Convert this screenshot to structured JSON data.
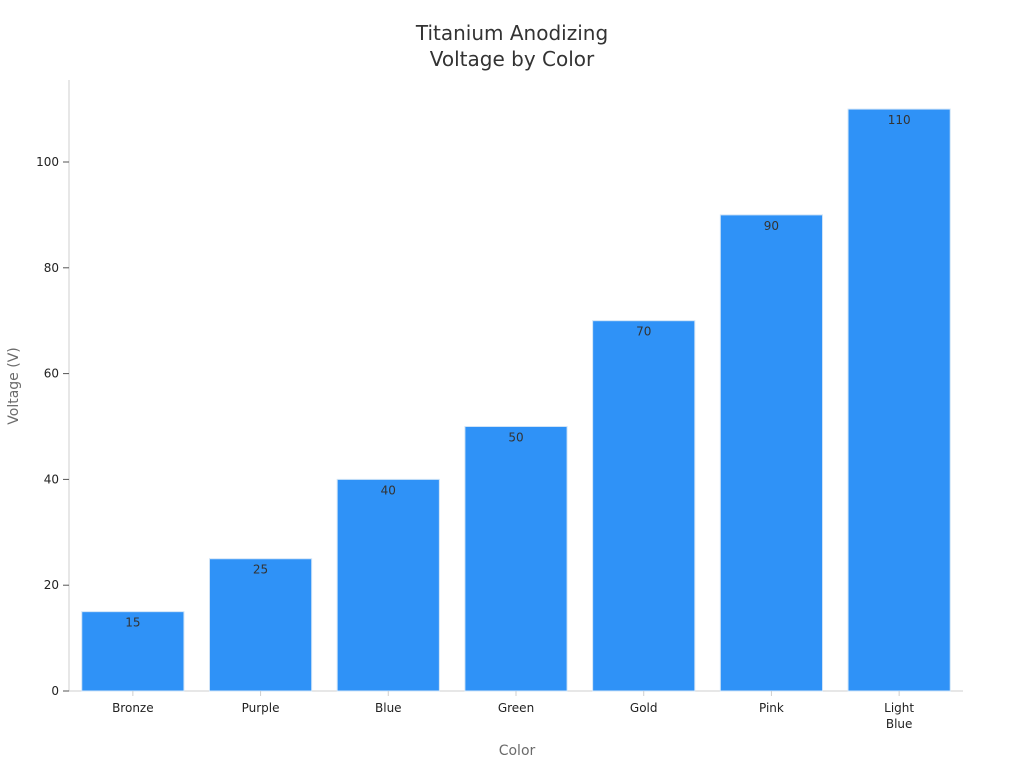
{
  "chart_data": {
    "type": "bar",
    "title_lines": [
      "Titanium Anodizing",
      "Voltage by Color"
    ],
    "xlabel": "Color",
    "ylabel": "Voltage (V)",
    "categories": [
      [
        "Bronze"
      ],
      [
        "Purple"
      ],
      [
        "Blue"
      ],
      [
        "Green"
      ],
      [
        "Gold"
      ],
      [
        "Pink"
      ],
      [
        "Light",
        "Blue"
      ]
    ],
    "values": [
      15,
      25,
      40,
      50,
      70,
      90,
      110
    ],
    "ylim": [
      0,
      115.5
    ],
    "yticks": [
      0,
      20,
      40,
      60,
      80,
      100
    ],
    "grid": false,
    "legend": "none",
    "bar_color": "#2f92f7",
    "data_labels": true
  }
}
